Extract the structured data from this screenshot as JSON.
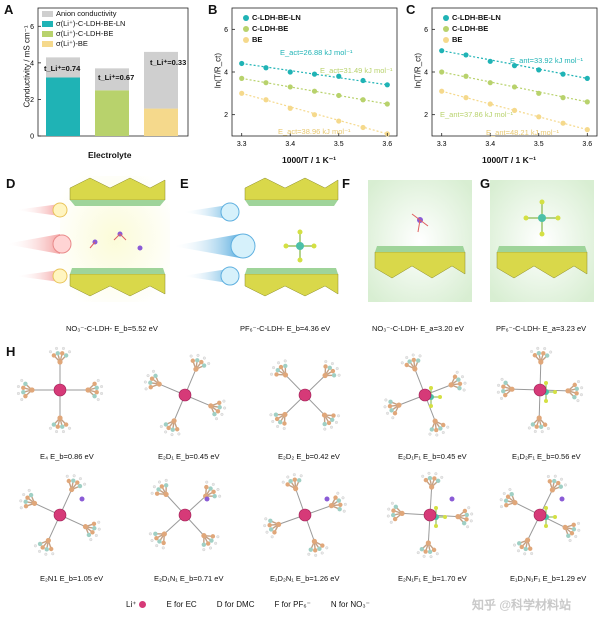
{
  "panels": {
    "A": {
      "label": "A",
      "ylabel": "Conductivity / mS cm⁻¹",
      "xlabel": "Electrolyte",
      "legend": [
        "Anion conductivity",
        "σ(Li⁺)-C-LDH-BE-LN",
        "σ(Li⁺)-C-LDH-BE",
        "σ(Li⁺)-BE"
      ],
      "t_labels": [
        "t_Li⁺=0.74",
        "t_Li⁺=0.67",
        "t_Li⁺=0.33"
      ],
      "yticks": [
        "0",
        "2",
        "4",
        "6"
      ],
      "colors": {
        "anion": "#cfcfcf",
        "ln": "#1fb3b5",
        "be_ldh": "#b8d26c",
        "be": "#f5d98c"
      }
    },
    "B": {
      "label": "B",
      "ylabel": "ln(T/R_ct)",
      "xlabel": "1000/T / 1 K⁻¹",
      "legend": [
        "C-LDH-BE-LN",
        "C-LDH-BE",
        "BE"
      ],
      "annotations": [
        "E_act=26.88 kJ mol⁻¹",
        "E_act=31.49 kJ mol⁻¹",
        "E_act=38.96 kJ mol⁻¹"
      ],
      "xticks": [
        "3.3",
        "3.4",
        "3.5",
        "3.6"
      ],
      "yticks": [
        "2",
        "4",
        "6"
      ]
    },
    "C": {
      "label": "C",
      "ylabel": "ln(T/R_ct)",
      "xlabel": "1000/T / 1 K⁻¹",
      "legend": [
        "C-LDH-BE-LN",
        "C-LDH-BE",
        "BE"
      ],
      "annotations": [
        "E_ant=33.92 kJ mol⁻¹",
        "E_ant=37.86 kJ mol⁻¹",
        "E_ant=48.21 kJ mol⁻¹"
      ],
      "xticks": [
        "3.3",
        "3.4",
        "3.5",
        "3.6"
      ],
      "yticks": [
        "2",
        "4",
        "6"
      ]
    },
    "D": {
      "label": "D",
      "caption": "NO₃⁻-C-LDH- E_b=5.52 eV"
    },
    "E": {
      "label": "E",
      "caption": "PF₆⁻-C-LDH- E_b=4.36 eV"
    },
    "F": {
      "label": "F",
      "caption": "NO₃⁻-C-LDH- E_a=3.20 eV"
    },
    "G": {
      "label": "G",
      "caption": "PF₆⁻-C-LDH- E_a=3.23 eV"
    },
    "H": {
      "label": "H",
      "row1": [
        "E₄ E_b=0.86 eV",
        "E₂D₁ E_b=0.45 eV",
        "E₂D₂ E_b=0.42 eV",
        "E₂D₁F₁ E_b=0.45 eV",
        "E₁D₂F₁ E_b=0.56 eV"
      ],
      "row2": [
        "E₂N1 E_b=1.05 eV",
        "E₂D₁N₁ E_b=0.71 eV",
        "E₁D₂N₁ E_b=1.26 eV",
        "E₂N₁F₁ E_b=1.70 eV",
        "E₁D₁N₁F₁ E_b=1.29 eV"
      ],
      "key": [
        "Li⁺",
        "E for EC",
        "D for DMC",
        "F for PF₆⁻",
        "N for NO₃⁻"
      ]
    }
  },
  "watermark": "知乎 @科学材料站",
  "chart_data": [
    {
      "type": "bar",
      "title": "",
      "categories": [
        "C-LDH-BE-LN",
        "C-LDH-BE",
        "BE"
      ],
      "series": [
        {
          "name": "σ(Li⁺)",
          "values": [
            3.2,
            2.5,
            1.5
          ]
        },
        {
          "name": "Anion conductivity",
          "values": [
            1.1,
            1.2,
            3.1
          ]
        }
      ],
      "xlabel": "Electrolyte",
      "ylabel": "Conductivity / mS cm⁻¹",
      "ylim": [
        0,
        7
      ]
    },
    {
      "type": "scatter",
      "title": "",
      "x": [
        3.3,
        3.35,
        3.4,
        3.45,
        3.5,
        3.55,
        3.6
      ],
      "series": [
        {
          "name": "C-LDH-BE-LN",
          "values": [
            4.4,
            4.2,
            4.0,
            3.9,
            3.8,
            3.6,
            3.4
          ]
        },
        {
          "name": "C-LDH-BE",
          "values": [
            3.7,
            3.5,
            3.3,
            3.1,
            2.9,
            2.7,
            2.5
          ]
        },
        {
          "name": "BE",
          "values": [
            3.0,
            2.7,
            2.3,
            2.0,
            1.7,
            1.4,
            1.1
          ]
        }
      ],
      "xlabel": "1000/T / 1 K⁻¹",
      "ylabel": "ln(T/R_ct)",
      "xlim": [
        3.28,
        3.62
      ],
      "ylim": [
        1.0,
        7.0
      ]
    },
    {
      "type": "scatter",
      "title": "",
      "x": [
        3.3,
        3.35,
        3.4,
        3.45,
        3.5,
        3.55,
        3.6
      ],
      "series": [
        {
          "name": "C-LDH-BE-LN",
          "values": [
            5.0,
            4.8,
            4.5,
            4.3,
            4.1,
            3.9,
            3.7
          ]
        },
        {
          "name": "C-LDH-BE",
          "values": [
            4.0,
            3.8,
            3.5,
            3.3,
            3.0,
            2.8,
            2.6
          ]
        },
        {
          "name": "BE",
          "values": [
            3.1,
            2.8,
            2.5,
            2.2,
            1.9,
            1.6,
            1.3
          ]
        }
      ],
      "xlabel": "1000/T / 1 K⁻¹",
      "ylabel": "ln(T/R_ct)",
      "xlim": [
        3.28,
        3.62
      ],
      "ylim": [
        1.0,
        7.0
      ]
    }
  ]
}
